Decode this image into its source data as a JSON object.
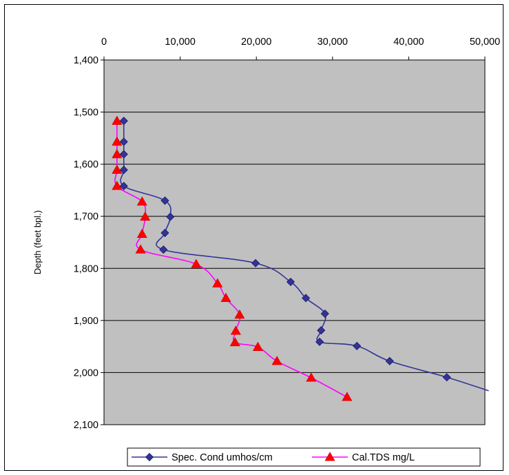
{
  "chart_data": {
    "type": "line",
    "title": "",
    "xlabel": "",
    "ylabel": "Depth (feet bpl.)",
    "xlim": [
      0,
      50000
    ],
    "ylim": [
      1400,
      2100
    ],
    "y_inverted": true,
    "x_axis_position": "top",
    "x_ticks": [
      0,
      10000,
      20000,
      30000,
      40000,
      50000
    ],
    "x_tick_labels": [
      "0",
      "10,000",
      "20,000",
      "30,000",
      "40,000",
      "50,000"
    ],
    "y_ticks": [
      1400,
      1500,
      1600,
      1700,
      1800,
      1900,
      2000,
      2100
    ],
    "y_tick_labels": [
      "1,400",
      "1,500",
      "1,600",
      "1,700",
      "1,800",
      "1,900",
      "2,000",
      "2,100"
    ],
    "grid": "horizontal",
    "plot_background": "#c0c0c0",
    "legend_position": "bottom",
    "series": [
      {
        "name": "Spec. Cond umhos/cm",
        "color": "#333399",
        "marker": "diamond",
        "x": [
          2600,
          2600,
          2600,
          2600,
          2600,
          8000,
          8700,
          8000,
          7800,
          19900,
          24500,
          26500,
          29000,
          28500,
          28300,
          33200,
          37500,
          45000,
          50500
        ],
        "y": [
          1517,
          1557,
          1581,
          1611,
          1642,
          1670,
          1701,
          1732,
          1764,
          1790,
          1826,
          1857,
          1887,
          1919,
          1941,
          1949,
          1978,
          2009,
          2035
        ]
      },
      {
        "name": "Cal.TDS mg/L",
        "color": "#ff00ff",
        "marker_color": "#ff0000",
        "marker": "triangle",
        "x": [
          1700,
          1700,
          1700,
          1700,
          1700,
          5000,
          5400,
          5000,
          4800,
          12100,
          14900,
          16000,
          17800,
          17300,
          17200,
          20200,
          22700,
          27200,
          31900
        ],
        "y": [
          1517,
          1557,
          1581,
          1611,
          1642,
          1672,
          1701,
          1734,
          1764,
          1792,
          1829,
          1857,
          1889,
          1920,
          1942,
          1951,
          1978,
          2010,
          2047
        ]
      }
    ]
  }
}
